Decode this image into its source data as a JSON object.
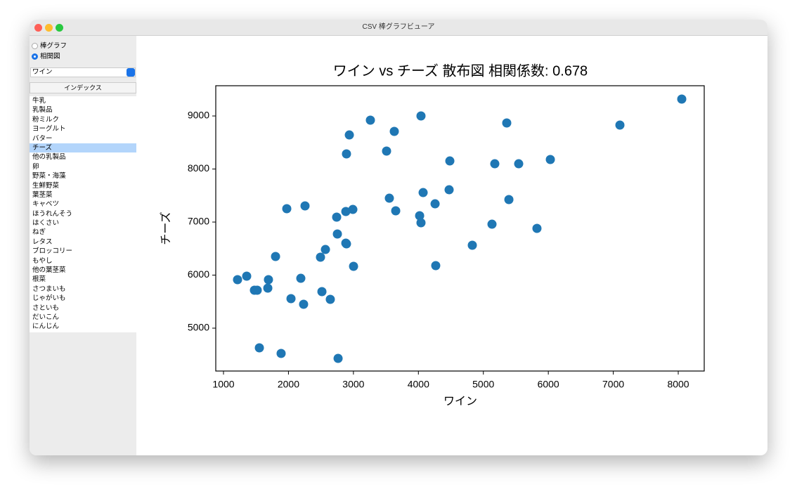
{
  "window": {
    "title": "CSV 棒グラフビューア"
  },
  "sidebar": {
    "modes": [
      "棒グラフ",
      "相関図"
    ],
    "selected_mode": 1,
    "dropdown": "ワイン",
    "list_header": "インデックス",
    "items": [
      "牛乳",
      "乳製品",
      "粉ミルク",
      "ヨーグルト",
      "バター",
      "チーズ",
      "他の乳製品",
      "卵",
      "野菜・海藻",
      "生鮮野菜",
      "葉茎菜",
      "キャベツ",
      "ほうれんそう",
      "はくさい",
      "ねぎ",
      "レタス",
      "ブロッコリー",
      "もやし",
      "他の葉茎菜",
      "根菜",
      "さつまいも",
      "じゃがいも",
      "さといも",
      "だいこん",
      "にんじん"
    ],
    "selected_item": 5
  },
  "chart_data": {
    "type": "scatter",
    "title": "ワイン vs チーズ 散布図 相関係数: 0.678",
    "x_label": "ワイン",
    "y_label": "チーズ",
    "color": "#1f77b4",
    "x": [
      8054,
      7102,
      5360,
      4040,
      3261,
      3629,
      2937,
      3510,
      2893,
      4484,
      6031,
      5176,
      5544,
      3553,
      4073,
      4473,
      4257,
      3651,
      4019,
      4040,
      5393,
      5133,
      5825,
      4830,
      4267,
      1974,
      2255,
      2991,
      2883,
      2742,
      2753,
      2883,
      2893,
      2569,
      2493,
      1801,
      3002,
      1216,
      1357,
      1692,
      2190,
      1476,
      1519,
      1682,
      2515,
      2039,
      2233,
      2644,
      1552,
      1887,
      2764
    ],
    "values": [
      9318,
      8828,
      8868,
      9000,
      8921,
      8709,
      8642,
      8338,
      8285,
      8152,
      8179,
      8099,
      8099,
      7450,
      7556,
      7609,
      7344,
      7212,
      7119,
      6987,
      7424,
      6960,
      6881,
      6563,
      6179,
      7252,
      7305,
      7238,
      7199,
      7093,
      6775,
      6603,
      6589,
      6483,
      6338,
      6351,
      6166,
      5914,
      5980,
      5914,
      5940,
      5715,
      5715,
      5755,
      5689,
      5556,
      5450,
      5543,
      4629,
      4523,
      4430
    ],
    "xlim": [
      881,
      8400
    ],
    "ylim": [
      4192,
      9570
    ],
    "xticks": [
      1000,
      2000,
      3000,
      4000,
      5000,
      6000,
      7000,
      8000
    ],
    "yticks": [
      5000,
      6000,
      7000,
      8000,
      9000
    ]
  }
}
